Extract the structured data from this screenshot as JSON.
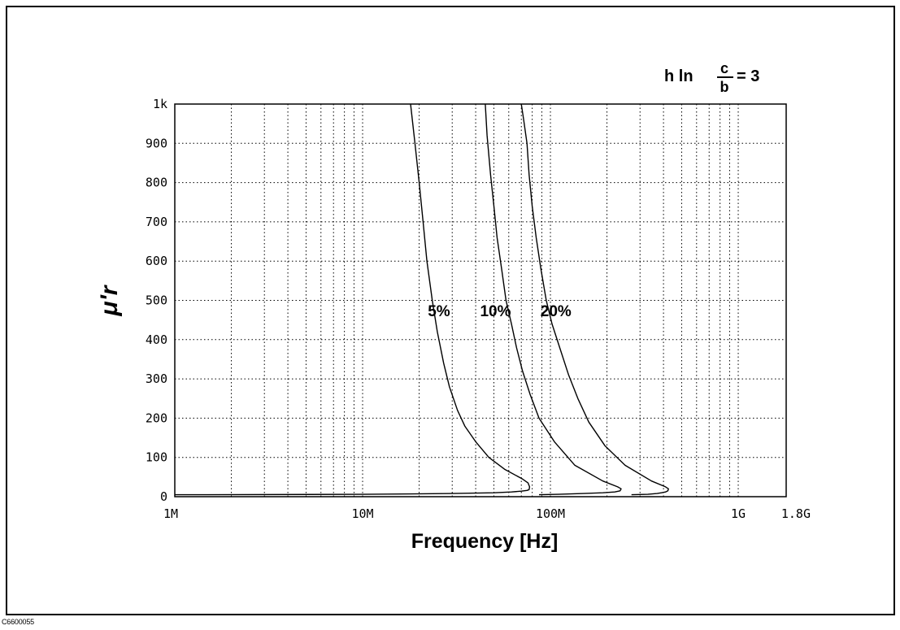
{
  "figure_code": "C6600055",
  "annotation": {
    "lhs": "h ln",
    "numerator": "c",
    "denominator": "b",
    "rhs": "= 3"
  },
  "chart_data": {
    "type": "line",
    "xlabel": "Frequency [Hz]",
    "ylabel": "μ'r",
    "xscale": "log",
    "xlim": [
      1000000,
      1800000000
    ],
    "ylim": [
      0,
      1000
    ],
    "grid": true,
    "x_tick_labels": [
      {
        "value": 1000000,
        "label": "1M"
      },
      {
        "value": 10000000,
        "label": "10M"
      },
      {
        "value": 100000000,
        "label": "100M"
      },
      {
        "value": 1000000000,
        "label": "1G"
      },
      {
        "value": 1800000000,
        "label": "1.8G"
      }
    ],
    "y_tick_labels": [
      {
        "value": 0,
        "label": "0"
      },
      {
        "value": 100,
        "label": "100"
      },
      {
        "value": 200,
        "label": "200"
      },
      {
        "value": 300,
        "label": "300"
      },
      {
        "value": 400,
        "label": "400"
      },
      {
        "value": 500,
        "label": "500"
      },
      {
        "value": 600,
        "label": "600"
      },
      {
        "value": 700,
        "label": "700"
      },
      {
        "value": 800,
        "label": "800"
      },
      {
        "value": 900,
        "label": "900"
      },
      {
        "value": 1000,
        "label": "1k"
      }
    ],
    "series": [
      {
        "name": "5%",
        "label_at": [
          25500000,
          480
        ],
        "x": [
          1000000,
          10000000,
          30000000,
          50000000,
          62000000,
          70000000,
          75000000,
          77000000,
          77500000,
          76000000,
          71000000,
          57000000,
          47000000,
          40000000,
          35000000,
          32000000,
          29000000,
          27000000,
          25000000,
          23500000,
          22000000,
          21000000,
          20000000,
          19000000,
          18000000
        ],
        "y": [
          5,
          6,
          8,
          10,
          12,
          14,
          16,
          18,
          25,
          35,
          45,
          70,
          100,
          140,
          180,
          220,
          280,
          340,
          420,
          500,
          600,
          700,
          800,
          900,
          1000
        ]
      },
      {
        "name": "10%",
        "label_at": [
          51000000,
          480
        ],
        "x": [
          87000000,
          110000000,
          150000000,
          190000000,
          220000000,
          235000000,
          238000000,
          228000000,
          190000000,
          135000000,
          105000000,
          87000000,
          78000000,
          71000000,
          66000000,
          62000000,
          58000000,
          55000000,
          52000000,
          50000000,
          48000000,
          46000000,
          45000000
        ],
        "y": [
          5,
          6,
          8,
          10,
          12,
          15,
          20,
          25,
          40,
          80,
          140,
          200,
          260,
          320,
          380,
          440,
          500,
          580,
          660,
          740,
          820,
          920,
          1000
        ]
      },
      {
        "name": "20%",
        "label_at": [
          107000000,
          480
        ],
        "x": [
          270000000,
          330000000,
          370000000,
          390000000,
          410000000,
          422000000,
          425000000,
          410000000,
          345000000,
          250000000,
          195000000,
          160000000,
          140000000,
          125000000,
          112000000,
          102000000,
          95000000,
          89000000,
          84000000,
          80000000,
          77000000,
          75000000,
          72000000,
          70000000
        ],
        "y": [
          5,
          6,
          8,
          10,
          12,
          15,
          20,
          25,
          40,
          80,
          130,
          190,
          250,
          310,
          380,
          440,
          500,
          580,
          660,
          740,
          820,
          900,
          960,
          1000
        ]
      }
    ]
  }
}
